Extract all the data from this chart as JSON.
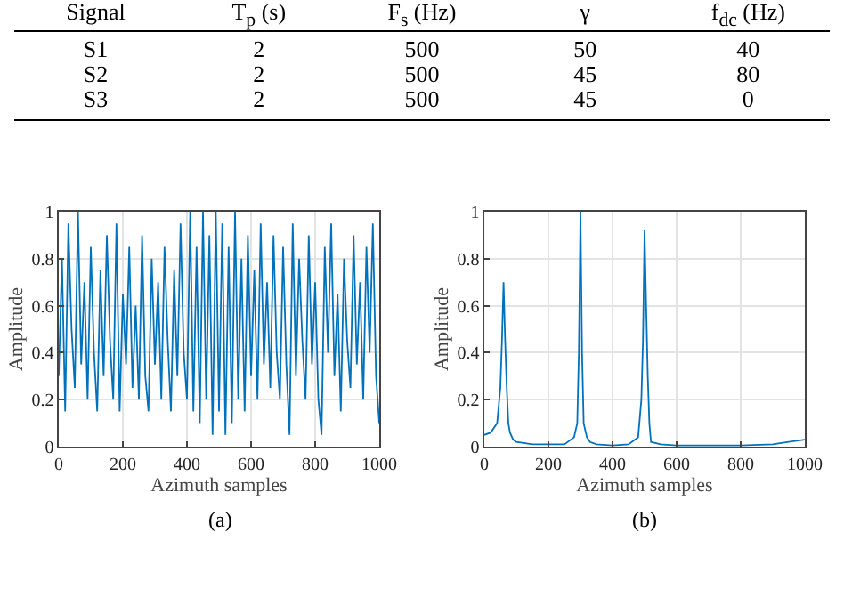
{
  "chart_data": [
    {
      "type": "other",
      "categories": [
        "Signal",
        "T$_{p}$ (s)",
        "F$_{s}$ (Hz)",
        "γ",
        "f$_{dc}$ (Hz)"
      ],
      "annotations": [
        "S1",
        "2",
        "500",
        "50",
        "40",
        "S2",
        "2",
        "500",
        "45",
        "80",
        "S3",
        "2",
        "500",
        "45",
        "0"
      ]
    },
    {
      "type": "line",
      "xlabel": "Azimuth samples",
      "ylabel": "Amplitude",
      "annotations": [
        "(a)"
      ],
      "xlim": [
        0,
        1000
      ],
      "xticks": [
        0,
        200,
        400,
        600,
        800,
        1000
      ],
      "ylim": [
        0,
        1
      ],
      "yticks": [
        0,
        0.2,
        0.4,
        0.6,
        0.8,
        1
      ],
      "grid": true,
      "x": [
        0,
        10,
        20,
        30,
        40,
        50,
        60,
        70,
        80,
        90,
        100,
        110,
        120,
        130,
        140,
        150,
        160,
        170,
        180,
        190,
        200,
        210,
        220,
        230,
        240,
        250,
        260,
        270,
        280,
        290,
        300,
        310,
        320,
        330,
        340,
        350,
        360,
        370,
        380,
        390,
        400,
        410,
        420,
        430,
        440,
        450,
        460,
        470,
        480,
        490,
        500,
        510,
        520,
        530,
        540,
        550,
        560,
        570,
        580,
        590,
        600,
        610,
        620,
        630,
        640,
        650,
        660,
        670,
        680,
        690,
        700,
        710,
        720,
        730,
        740,
        750,
        760,
        770,
        780,
        790,
        800,
        810,
        820,
        830,
        840,
        850,
        860,
        870,
        880,
        890,
        900,
        910,
        920,
        930,
        940,
        950,
        960,
        970,
        980,
        990,
        1000
      ],
      "series": [
        {
          "color": "#0072bd",
          "values": [
            0.3,
            0.8,
            0.15,
            0.95,
            0.5,
            0.25,
            1,
            0.35,
            0.7,
            0.2,
            0.85,
            0.4,
            0.15,
            0.75,
            0.3,
            0.9,
            0.45,
            0.2,
            0.95,
            0.15,
            0.65,
            0.35,
            0.85,
            0.25,
            0.6,
            0.2,
            0.9,
            0.3,
            0.15,
            0.8,
            0.35,
            0.7,
            0.2,
            0.85,
            0.45,
            0.15,
            0.75,
            0.3,
            0.95,
            0.4,
            0.2,
            1,
            0.15,
            0.85,
            0.1,
            1,
            0.2,
            0.9,
            0.05,
            1,
            0.15,
            0.95,
            0.05,
            0.85,
            0.1,
            1,
            0.2,
            0.8,
            0.15,
            0.9,
            0.3,
            0.75,
            0.2,
            0.95,
            0.35,
            0.7,
            0.25,
            0.9,
            0.4,
            0.2,
            0.85,
            0.35,
            0.05,
            0.95,
            0.3,
            0.8,
            0.45,
            0.2,
            0.9,
            0.35,
            0.7,
            0.2,
            0.05,
            0.85,
            0.4,
            0.95,
            0.3,
            0.65,
            0.15,
            0.8,
            0.45,
            0.25,
            0.9,
            0.35,
            0.7,
            0.2,
            0.85,
            0.4,
            0.95,
            0.3,
            0.1
          ]
        }
      ]
    },
    {
      "type": "line",
      "xlabel": "Azimuth samples",
      "ylabel": "Amplitude",
      "annotations": [
        "(b)"
      ],
      "xlim": [
        0,
        1000
      ],
      "xticks": [
        0,
        200,
        400,
        600,
        800,
        1000
      ],
      "ylim": [
        0,
        1
      ],
      "yticks": [
        0,
        0.2,
        0.4,
        0.6,
        0.8,
        1
      ],
      "grid": true,
      "x": [
        0,
        20,
        40,
        50,
        55,
        60,
        65,
        70,
        75,
        80,
        90,
        100,
        150,
        200,
        250,
        280,
        290,
        295,
        300,
        305,
        310,
        320,
        330,
        350,
        400,
        450,
        480,
        490,
        495,
        500,
        505,
        510,
        515,
        520,
        550,
        600,
        700,
        800,
        900,
        950,
        1000
      ],
      "series": [
        {
          "color": "#0072bd",
          "values": [
            0.05,
            0.06,
            0.1,
            0.25,
            0.45,
            0.7,
            0.45,
            0.25,
            0.1,
            0.06,
            0.03,
            0.02,
            0.01,
            0.01,
            0.01,
            0.04,
            0.1,
            0.4,
            1,
            0.4,
            0.1,
            0.04,
            0.02,
            0.01,
            0.005,
            0.01,
            0.04,
            0.2,
            0.45,
            0.92,
            0.6,
            0.3,
            0.1,
            0.02,
            0.01,
            0.005,
            0.005,
            0.005,
            0.01,
            0.02,
            0.03
          ]
        }
      ]
    }
  ]
}
